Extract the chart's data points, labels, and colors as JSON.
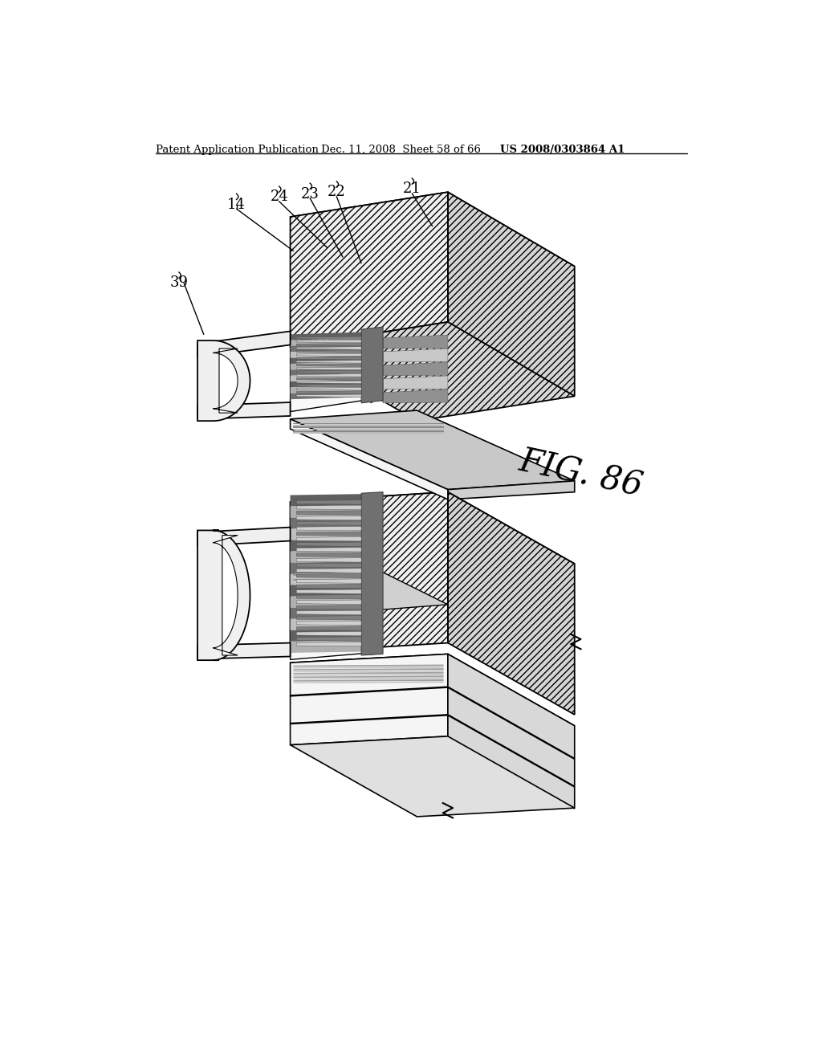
{
  "bg_color": "#ffffff",
  "line_color": "#000000",
  "header_left": "Patent Application Publication",
  "header_mid": "Dec. 11, 2008  Sheet 58 of 66",
  "header_right": "US 2008/0303864 A1",
  "fig_label": "FIG. 86",
  "labels": [
    "14",
    "24",
    "23",
    "22",
    "21",
    "39"
  ],
  "hatch_face_color": "#d8d8d8",
  "white_face_color": "#f5f5f5",
  "mid_face_color": "#e0e0e0",
  "dark_stripe_color": "#909090",
  "light_stripe_color": "#c8c8c8"
}
